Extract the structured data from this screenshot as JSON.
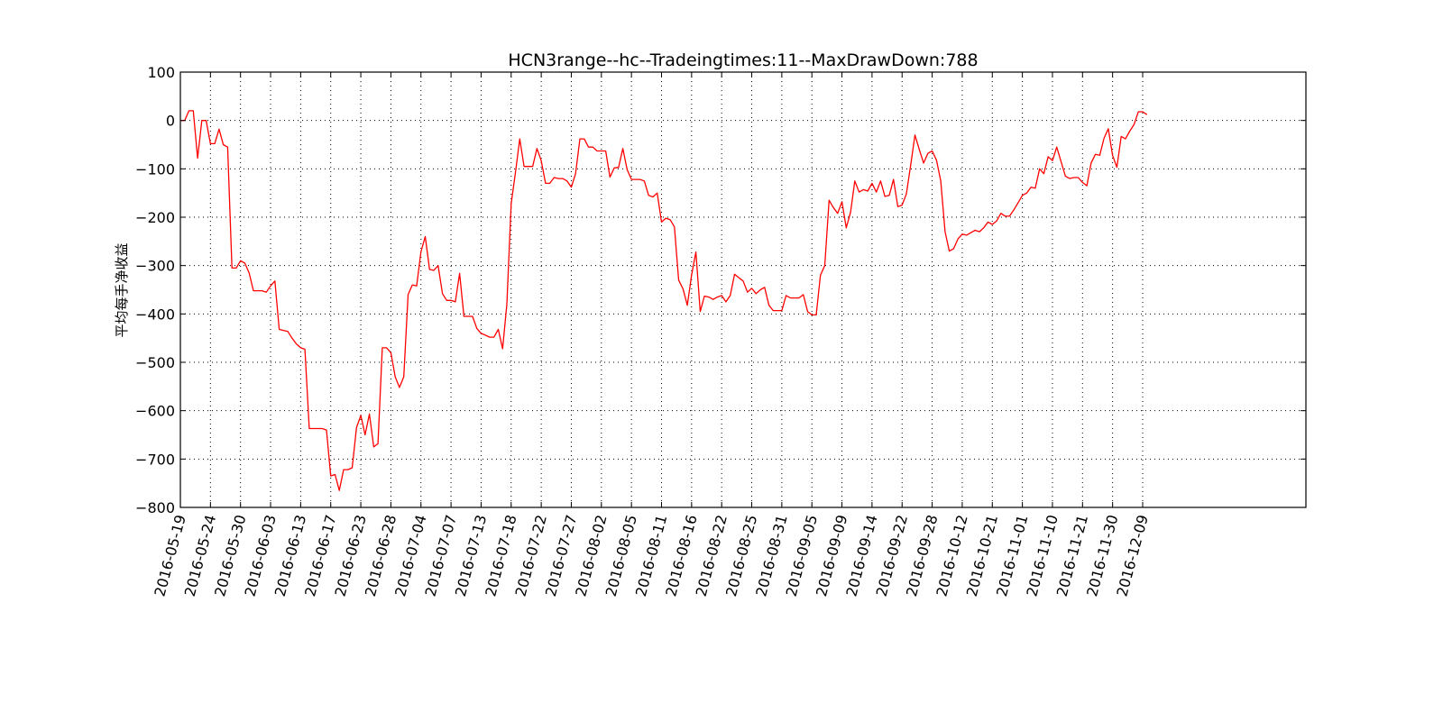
{
  "chart_data": {
    "type": "line",
    "title": "HCN3range--hc--Tradeingtimes:11--MaxDrawDown:788",
    "ylabel": "平均每手净收益",
    "xlabel": "",
    "ylim": [
      -800,
      100
    ],
    "yticks": [
      100,
      0,
      -100,
      -200,
      -300,
      -400,
      -500,
      -600,
      -700,
      -800
    ],
    "ytick_labels": [
      "100",
      "0",
      "−100",
      "−200",
      "−300",
      "−400",
      "−500",
      "−600",
      "−700",
      "−800"
    ],
    "x_range": [
      0,
      262
    ],
    "xticks": [
      0,
      7,
      14,
      21,
      28,
      35,
      42,
      49,
      56,
      63,
      70,
      77,
      84,
      91,
      98,
      105,
      112,
      119,
      126,
      133,
      140,
      147,
      154,
      161,
      168,
      175,
      182,
      189,
      196,
      203,
      210,
      217,
      224
    ],
    "xtick_labels": [
      "2016-05-19",
      "2016-05-24",
      "2016-05-30",
      "2016-06-03",
      "2016-06-13",
      "2016-06-17",
      "2016-06-23",
      "2016-06-28",
      "2016-07-04",
      "2016-07-07",
      "2016-07-13",
      "2016-07-18",
      "2016-07-22",
      "2016-07-27",
      "2016-08-02",
      "2016-08-05",
      "2016-08-11",
      "2016-08-16",
      "2016-08-22",
      "2016-08-25",
      "2016-08-31",
      "2016-09-05",
      "2016-09-09",
      "2016-09-14",
      "2016-09-22",
      "2016-09-28",
      "2016-10-12",
      "2016-10-21",
      "2016-11-01",
      "2016-11-10",
      "2016-11-21",
      "2016-11-30",
      "2016-12-09"
    ],
    "grid": true,
    "colors": {
      "line": "#ff0000",
      "axis": "#000000",
      "background": "#ffffff"
    },
    "series": [
      {
        "values": [
          [
            0,
            0
          ],
          [
            1,
            0
          ],
          [
            2,
            20
          ],
          [
            3,
            20
          ],
          [
            4,
            -78
          ],
          [
            5,
            0
          ],
          [
            6,
            0
          ],
          [
            7,
            -48
          ],
          [
            8,
            -48
          ],
          [
            9,
            -18
          ],
          [
            10,
            -50
          ],
          [
            11,
            -55
          ],
          [
            12,
            -305
          ],
          [
            13,
            -305
          ],
          [
            14,
            -290
          ],
          [
            15,
            -295
          ],
          [
            16,
            -315
          ],
          [
            17,
            -352
          ],
          [
            18,
            -352
          ],
          [
            19,
            -352
          ],
          [
            20,
            -355
          ],
          [
            21,
            -342
          ],
          [
            22,
            -332
          ],
          [
            23,
            -432
          ],
          [
            24,
            -434
          ],
          [
            25,
            -436
          ],
          [
            26,
            -450
          ],
          [
            27,
            -462
          ],
          [
            28,
            -470
          ],
          [
            29,
            -473
          ],
          [
            30,
            -637
          ],
          [
            31,
            -637
          ],
          [
            32,
            -637
          ],
          [
            33,
            -637
          ],
          [
            34,
            -640
          ],
          [
            35,
            -735
          ],
          [
            36,
            -732
          ],
          [
            37,
            -765
          ],
          [
            38,
            -722
          ],
          [
            39,
            -722
          ],
          [
            40,
            -718
          ],
          [
            41,
            -635
          ],
          [
            42,
            -610
          ],
          [
            43,
            -650
          ],
          [
            44,
            -607
          ],
          [
            45,
            -675
          ],
          [
            46,
            -668
          ],
          [
            47,
            -470
          ],
          [
            48,
            -470
          ],
          [
            49,
            -480
          ],
          [
            50,
            -530
          ],
          [
            51,
            -552
          ],
          [
            52,
            -530
          ],
          [
            53,
            -360
          ],
          [
            54,
            -340
          ],
          [
            55,
            -342
          ],
          [
            56,
            -272
          ],
          [
            57,
            -240
          ],
          [
            58,
            -308
          ],
          [
            59,
            -310
          ],
          [
            60,
            -300
          ],
          [
            61,
            -358
          ],
          [
            62,
            -372
          ],
          [
            63,
            -372
          ],
          [
            64,
            -375
          ],
          [
            65,
            -316
          ],
          [
            66,
            -405
          ],
          [
            67,
            -405
          ],
          [
            68,
            -405
          ],
          [
            69,
            -430
          ],
          [
            70,
            -440
          ],
          [
            71,
            -444
          ],
          [
            72,
            -448
          ],
          [
            73,
            -448
          ],
          [
            74,
            -432
          ],
          [
            75,
            -472
          ],
          [
            76,
            -380
          ],
          [
            77,
            -172
          ],
          [
            78,
            -108
          ],
          [
            79,
            -38
          ],
          [
            80,
            -95
          ],
          [
            81,
            -95
          ],
          [
            82,
            -95
          ],
          [
            83,
            -58
          ],
          [
            84,
            -83
          ],
          [
            85,
            -130
          ],
          [
            86,
            -130
          ],
          [
            87,
            -118
          ],
          [
            88,
            -120
          ],
          [
            89,
            -120
          ],
          [
            90,
            -125
          ],
          [
            91,
            -138
          ],
          [
            92,
            -110
          ],
          [
            93,
            -38
          ],
          [
            94,
            -38
          ],
          [
            95,
            -55
          ],
          [
            96,
            -55
          ],
          [
            97,
            -63
          ],
          [
            98,
            -63
          ],
          [
            99,
            -63
          ],
          [
            100,
            -117
          ],
          [
            101,
            -98
          ],
          [
            102,
            -97
          ],
          [
            103,
            -58
          ],
          [
            104,
            -102
          ],
          [
            105,
            -122
          ],
          [
            106,
            -122
          ],
          [
            107,
            -122
          ],
          [
            108,
            -125
          ],
          [
            109,
            -155
          ],
          [
            110,
            -158
          ],
          [
            111,
            -150
          ],
          [
            112,
            -210
          ],
          [
            113,
            -202
          ],
          [
            114,
            -205
          ],
          [
            115,
            -220
          ],
          [
            116,
            -330
          ],
          [
            117,
            -348
          ],
          [
            118,
            -382
          ],
          [
            119,
            -320
          ],
          [
            120,
            -272
          ],
          [
            121,
            -395
          ],
          [
            122,
            -363
          ],
          [
            123,
            -365
          ],
          [
            124,
            -370
          ],
          [
            125,
            -365
          ],
          [
            126,
            -362
          ],
          [
            127,
            -375
          ],
          [
            128,
            -362
          ],
          [
            129,
            -318
          ],
          [
            130,
            -325
          ],
          [
            131,
            -332
          ],
          [
            132,
            -355
          ],
          [
            133,
            -347
          ],
          [
            134,
            -358
          ],
          [
            135,
            -350
          ],
          [
            136,
            -345
          ],
          [
            137,
            -382
          ],
          [
            138,
            -393
          ],
          [
            139,
            -393
          ],
          [
            140,
            -393
          ],
          [
            141,
            -362
          ],
          [
            142,
            -367
          ],
          [
            143,
            -367
          ],
          [
            144,
            -367
          ],
          [
            145,
            -360
          ],
          [
            146,
            -395
          ],
          [
            147,
            -402
          ],
          [
            148,
            -402
          ],
          [
            149,
            -320
          ],
          [
            150,
            -300
          ],
          [
            151,
            -165
          ],
          [
            152,
            -180
          ],
          [
            153,
            -192
          ],
          [
            154,
            -168
          ],
          [
            155,
            -222
          ],
          [
            156,
            -190
          ],
          [
            157,
            -125
          ],
          [
            158,
            -148
          ],
          [
            159,
            -143
          ],
          [
            160,
            -146
          ],
          [
            161,
            -130
          ],
          [
            162,
            -148
          ],
          [
            163,
            -125
          ],
          [
            164,
            -157
          ],
          [
            165,
            -155
          ],
          [
            166,
            -122
          ],
          [
            167,
            -178
          ],
          [
            168,
            -175
          ],
          [
            169,
            -152
          ],
          [
            170,
            -92
          ],
          [
            171,
            -30
          ],
          [
            172,
            -60
          ],
          [
            173,
            -88
          ],
          [
            174,
            -68
          ],
          [
            175,
            -63
          ],
          [
            176,
            -82
          ],
          [
            177,
            -125
          ],
          [
            178,
            -230
          ],
          [
            179,
            -270
          ],
          [
            180,
            -265
          ],
          [
            181,
            -245
          ],
          [
            182,
            -235
          ],
          [
            183,
            -237
          ],
          [
            184,
            -232
          ],
          [
            185,
            -227
          ],
          [
            186,
            -230
          ],
          [
            187,
            -222
          ],
          [
            188,
            -210
          ],
          [
            189,
            -215
          ],
          [
            190,
            -208
          ],
          [
            191,
            -192
          ],
          [
            192,
            -198
          ],
          [
            193,
            -198
          ],
          [
            194,
            -185
          ],
          [
            195,
            -170
          ],
          [
            196,
            -155
          ],
          [
            197,
            -150
          ],
          [
            198,
            -138
          ],
          [
            199,
            -140
          ],
          [
            200,
            -100
          ],
          [
            201,
            -110
          ],
          [
            202,
            -75
          ],
          [
            203,
            -83
          ],
          [
            204,
            -55
          ],
          [
            205,
            -85
          ],
          [
            206,
            -115
          ],
          [
            207,
            -120
          ],
          [
            208,
            -118
          ],
          [
            209,
            -118
          ],
          [
            210,
            -128
          ],
          [
            211,
            -135
          ],
          [
            212,
            -88
          ],
          [
            213,
            -70
          ],
          [
            214,
            -72
          ],
          [
            215,
            -37
          ],
          [
            216,
            -17
          ],
          [
            217,
            -72
          ],
          [
            218,
            -97
          ],
          [
            219,
            -33
          ],
          [
            220,
            -38
          ],
          [
            221,
            -22
          ],
          [
            222,
            -8
          ],
          [
            223,
            18
          ],
          [
            224,
            18
          ],
          [
            225,
            12
          ]
        ]
      }
    ]
  }
}
